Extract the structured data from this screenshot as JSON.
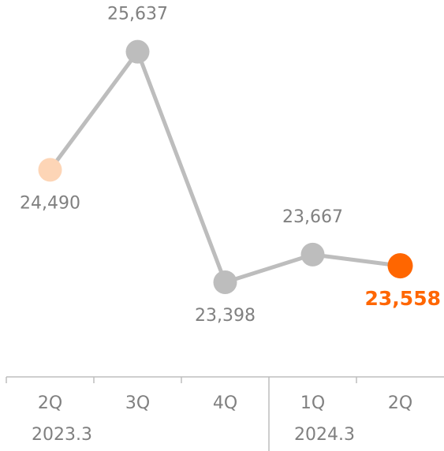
{
  "chart_data": {
    "type": "line",
    "categories": [
      "2Q",
      "3Q",
      "4Q",
      "1Q",
      "2Q"
    ],
    "groups": [
      {
        "label": "2023.3",
        "span": 3
      },
      {
        "label": "2024.3",
        "span": 2
      }
    ],
    "series": [
      {
        "color": "#bdbdbd",
        "values": [
          24490,
          25637,
          23398,
          23667,
          23558
        ],
        "value_labels": [
          "24,490",
          "25,637",
          "23,398",
          "23,667",
          "23,558"
        ],
        "point_colors": [
          "#fdd5b6",
          "#bdbdbd",
          "#bdbdbd",
          "#bdbdbd",
          "#ff6600"
        ]
      }
    ],
    "highlight_index": 4,
    "ylim": [
      22540,
      26140
    ]
  }
}
